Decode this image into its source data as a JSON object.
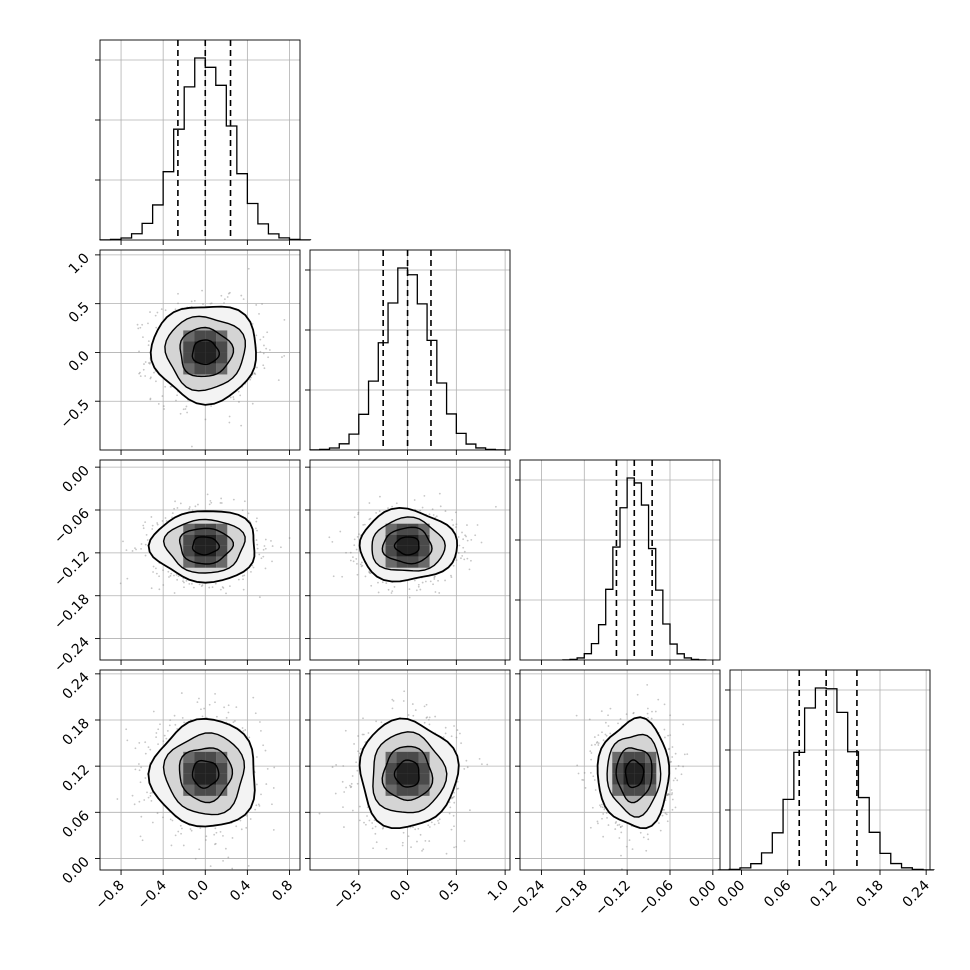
{
  "chart_data": {
    "type": "corner",
    "title": "",
    "n_parameters": 4,
    "grid": true,
    "parameters": [
      {
        "index": 0,
        "range": [
          -1.0,
          0.9
        ],
        "ticks": [
          -0.8,
          -0.4,
          0.0,
          0.4,
          0.8
        ],
        "tick_labels": [
          "−0.8",
          "−0.4",
          "0.0",
          "0.4",
          "0.8"
        ],
        "quantiles": [
          -0.26,
          0.0,
          0.24
        ],
        "mean": 0.0,
        "sd": 0.25
      },
      {
        "index": 1,
        "range": [
          -1.0,
          1.05
        ],
        "ticks": [
          -0.5,
          0.0,
          0.5,
          1.0
        ],
        "tick_labels": [
          "−0.5",
          "0.0",
          "0.5",
          "1.0"
        ],
        "quantiles": [
          -0.25,
          0.0,
          0.24
        ],
        "mean": 0.0,
        "sd": 0.25
      },
      {
        "index": 2,
        "range": [
          -0.27,
          0.01
        ],
        "ticks": [
          -0.24,
          -0.18,
          -0.12,
          -0.06,
          0.0
        ],
        "tick_labels": [
          "−0.24",
          "−0.18",
          "−0.12",
          "−0.06",
          "0.00"
        ],
        "quantiles": [
          -0.135,
          -0.11,
          -0.085
        ],
        "mean": -0.11,
        "sd": 0.025
      },
      {
        "index": 3,
        "range": [
          -0.015,
          0.245
        ],
        "ticks": [
          0.0,
          0.06,
          0.12,
          0.18,
          0.24
        ],
        "tick_labels": [
          "0.00",
          "0.06",
          "0.12",
          "0.18",
          "0.24"
        ],
        "quantiles": [
          0.075,
          0.11,
          0.15
        ],
        "mean": 0.11,
        "sd": 0.035
      }
    ],
    "contour_levels_sigma": [
      0.5,
      1.0,
      1.5,
      2.0
    ],
    "colors": {
      "line": "#000000",
      "grid": "#b0b0b0",
      "scatter": "#808080"
    }
  }
}
